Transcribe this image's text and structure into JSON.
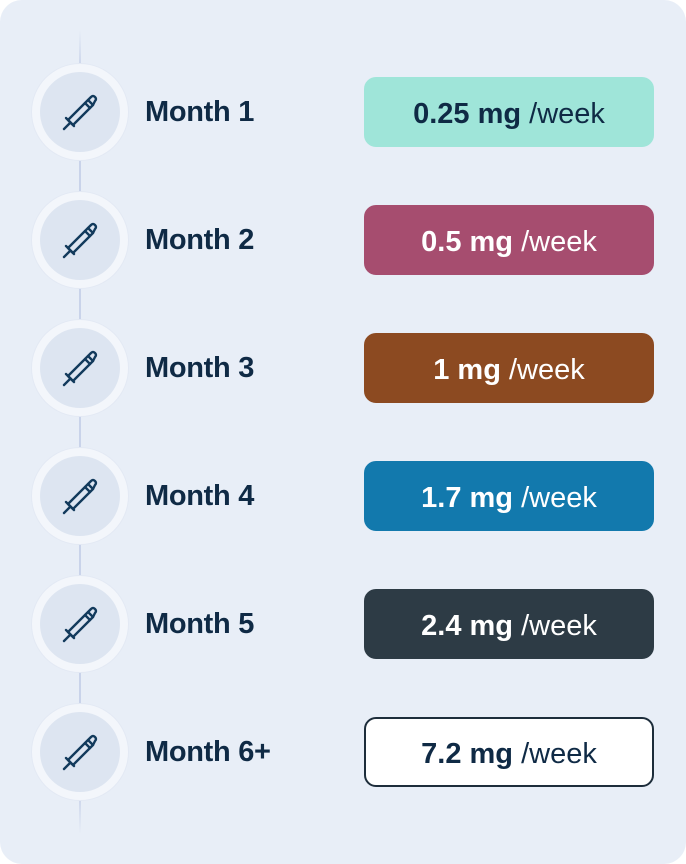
{
  "schedule": [
    {
      "month": "Month 1",
      "dose": "0.25 mg",
      "unit": "/week",
      "bg": "#9fe5d9",
      "fg": "#0f2a45",
      "border": "#9fe5d9"
    },
    {
      "month": "Month 2",
      "dose": "0.5 mg",
      "unit": "/week",
      "bg": "#a64d6f",
      "fg": "#ffffff",
      "border": "#a64d6f"
    },
    {
      "month": "Month 3",
      "dose": "1 mg",
      "unit": "/week",
      "bg": "#8c4a21",
      "fg": "#ffffff",
      "border": "#8c4a21"
    },
    {
      "month": "Month 4",
      "dose": "1.7 mg",
      "unit": "/week",
      "bg": "#1279ad",
      "fg": "#ffffff",
      "border": "#1279ad"
    },
    {
      "month": "Month 5",
      "dose": "2.4 mg",
      "unit": "/week",
      "bg": "#2d3b45",
      "fg": "#ffffff",
      "border": "#2d3b45"
    },
    {
      "month": "Month 6+",
      "dose": "7.2 mg",
      "unit": "/week",
      "bg": "#ffffff",
      "fg": "#0f2a45",
      "border": "#1d2d3b"
    }
  ],
  "icons": {
    "row_icon": "injection-pen-icon"
  },
  "colors": {
    "card_bg": "#e8eef7",
    "label_text": "#0f2a45",
    "icon_stroke": "#123a5c"
  }
}
